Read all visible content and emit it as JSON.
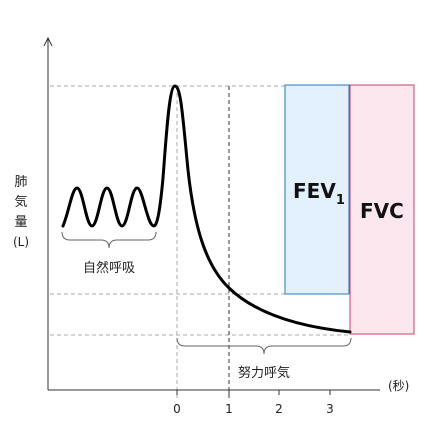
{
  "chart_data": {
    "type": "line",
    "ylabel_chars": [
      "肺",
      "気",
      "量",
      "(L)"
    ],
    "xunit": "(秒)",
    "x_ticks": [
      "0",
      "1",
      "2",
      "3"
    ],
    "annotations": {
      "natural_breathing": "自然呼吸",
      "forced_breathing": "努力呼気"
    },
    "boxes": [
      {
        "name": "FEV",
        "subscript": "1",
        "fill": "#e2f1fd",
        "stroke": "#4a90c8"
      },
      {
        "name": "FVC",
        "subscript": "",
        "fill": "#fde7ee",
        "stroke": "#d0607e"
      }
    ],
    "colors": {
      "curve": "#000000",
      "axis": "#333333",
      "guide": "#aaaaaa"
    }
  }
}
